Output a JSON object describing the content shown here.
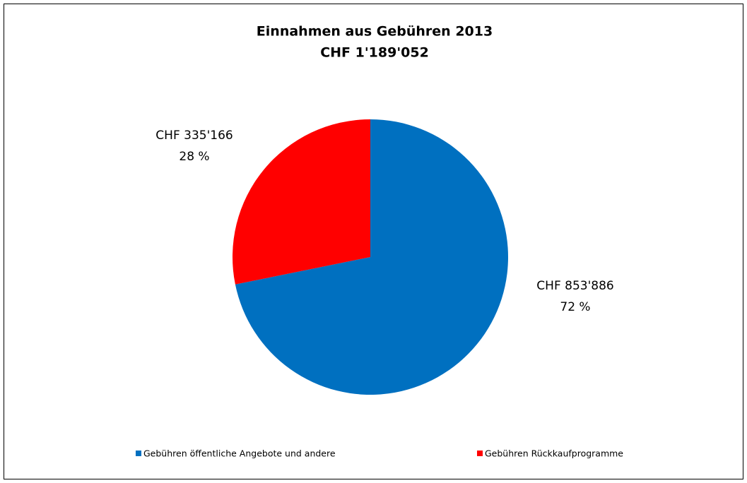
{
  "chart_data": {
    "type": "pie",
    "title": "Einnahmen aus Gebühren 2013",
    "subtitle": "CHF 1'189'052",
    "categories": [
      "Gebühren öffentliche Angebote und andere",
      "Gebühren Rückkaufprogramme"
    ],
    "values": [
      853886,
      335166
    ],
    "value_labels": [
      "CHF 853'886",
      "CHF 335'166"
    ],
    "percent_labels": [
      "72 %",
      "28 %"
    ],
    "colors": [
      "#0070c0",
      "#ff0000"
    ],
    "legend": "bottom"
  }
}
